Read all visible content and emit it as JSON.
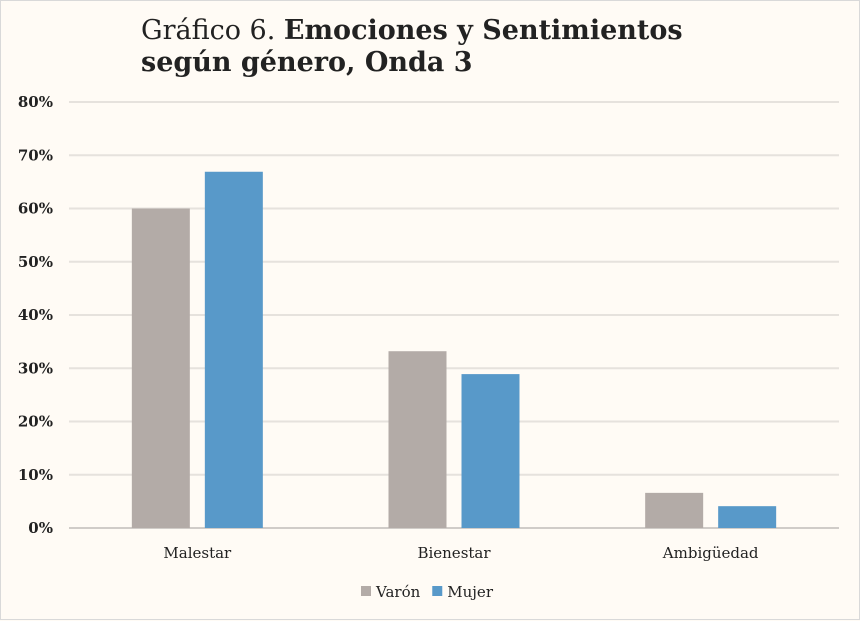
{
  "chart_data": {
    "type": "bar",
    "title_prefix": "Gráfico 6.",
    "title_bold": "Emociones y Sentimientos según género, Onda 3",
    "categories": [
      "Malestar",
      "Bienestar",
      "Ambigüedad"
    ],
    "series": [
      {
        "name": "Varón",
        "color": "#b3aba7",
        "values": [
          60.0,
          33.2,
          6.6
        ]
      },
      {
        "name": "Mujer",
        "color": "#5899c9",
        "values": [
          66.9,
          28.9,
          4.1
        ]
      }
    ],
    "ylim": [
      0,
      80
    ],
    "yticks": [
      "0%",
      "10%",
      "20%",
      "30%",
      "40%",
      "50%",
      "60%",
      "70%",
      "80%"
    ],
    "grid": true,
    "legend": "bottom"
  }
}
